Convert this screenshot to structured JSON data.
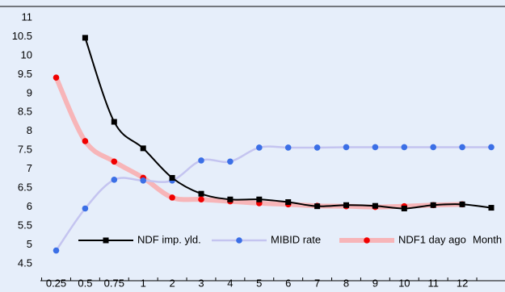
{
  "chart_data": {
    "type": "line",
    "categories": [
      "0.25",
      "0.5",
      "0.75",
      "1",
      "2",
      "3",
      "4",
      "5",
      "6",
      "7",
      "8",
      "9",
      "10",
      "11",
      "12",
      null
    ],
    "x_label": "Month",
    "series": [
      {
        "name": "NDF imp. yld.",
        "color": "#000000",
        "marker_color": "#000000",
        "marker": "square",
        "line_width": 2,
        "values": [
          null,
          10.47,
          8.25,
          7.55,
          6.77,
          6.35,
          6.2,
          6.2,
          6.13,
          6.02,
          6.05,
          6.03,
          5.96,
          6.05,
          6.07,
          5.98
        ]
      },
      {
        "name": "MIBID rate",
        "color": "#c4c4f0",
        "marker_color": "#3b6fe6",
        "marker": "circle",
        "line_width": 2.5,
        "values": [
          4.85,
          5.96,
          6.72,
          6.7,
          6.7,
          7.23,
          7.2,
          7.57,
          7.57,
          7.57,
          7.58,
          7.58,
          7.58,
          7.58,
          7.58,
          7.58
        ]
      },
      {
        "name": "NDF1 day ago",
        "color": "#f7b5b8",
        "marker_color": "#f00000",
        "marker": "circle",
        "line_width": 6,
        "values": [
          9.42,
          7.74,
          7.2,
          6.77,
          6.25,
          6.2,
          6.15,
          6.1,
          6.07,
          6.03,
          6.02,
          6.0,
          6.02,
          6.05,
          6.07,
          null
        ]
      }
    ],
    "ylim": [
      4.5,
      11
    ],
    "yticks": [
      4.5,
      5,
      5.5,
      6,
      6.5,
      7,
      7.5,
      8,
      8.5,
      9,
      9.5,
      10,
      10.5,
      11
    ],
    "grid": false,
    "legend": "bottom"
  }
}
